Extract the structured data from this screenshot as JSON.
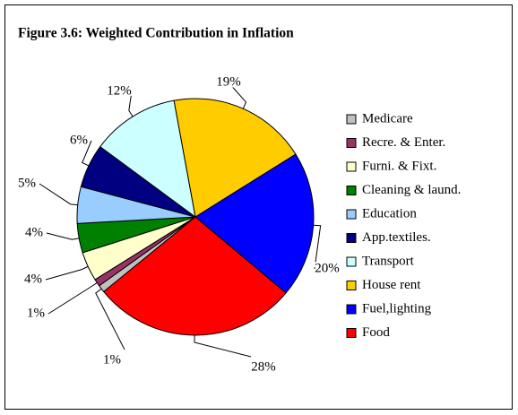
{
  "chart_data": {
    "type": "pie",
    "title": "Figure 3.6: Weighted Contribution in Inflation",
    "categories": [
      "Medicare",
      "Recre. & Enter.",
      "Furni. & Fixt.",
      "Cleaning & laund.",
      "Education",
      "App.textiles.",
      "Transport",
      "House rent",
      "Fuel,lighting",
      "Food"
    ],
    "values": [
      1,
      1,
      4,
      4,
      5,
      6,
      12,
      19,
      20,
      28
    ],
    "value_labels": [
      "1%",
      "1%",
      "4%",
      "4%",
      "5%",
      "6%",
      "12%",
      "19%",
      "20%",
      "28%"
    ],
    "colors": [
      "#c0c0c0",
      "#993366",
      "#ffffcc",
      "#008000",
      "#99ccff",
      "#000080",
      "#ccffff",
      "#ffcc00",
      "#0000ff",
      "#ff0000"
    ],
    "legend": "right"
  }
}
